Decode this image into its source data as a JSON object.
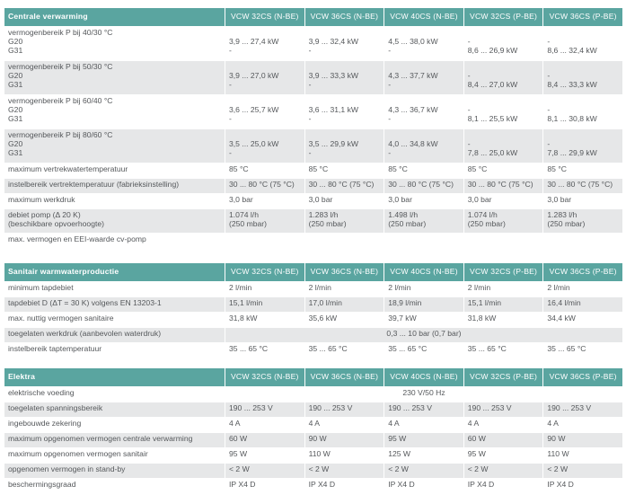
{
  "sections": [
    {
      "title": "Centrale verwarming",
      "columns": [
        "VCW 32CS (N-BE)",
        "VCW 36CS (N-BE)",
        "VCW 40CS (N-BE)",
        "VCW 32CS (P-BE)",
        "VCW 36CS (P-BE)"
      ],
      "rows": [
        {
          "label": [
            "vermogenbereik P bij 40/30 °C",
            "G20",
            "G31"
          ],
          "cells": [
            [
              "",
              "3,9 ... 27,4 kW",
              "-"
            ],
            [
              "",
              "3,9 ... 32,4 kW",
              "-"
            ],
            [
              "",
              "4,5 ... 38,0 kW",
              "-"
            ],
            [
              "",
              "-",
              "8,6 ... 26,9 kW"
            ],
            [
              "",
              "-",
              "8,6 ... 32,4 kW"
            ]
          ],
          "bg": "w",
          "h": 38
        },
        {
          "label": [
            "vermogenbereik P bij 50/30 °C",
            "G20",
            "G31"
          ],
          "cells": [
            [
              "",
              "3,9 ... 27,0 kW",
              "-"
            ],
            [
              "",
              "3,9 ... 33,3 kW",
              "-"
            ],
            [
              "",
              "4,3 ... 37,7 kW",
              "-"
            ],
            [
              "",
              "-",
              "8,4 ... 27,0 kW"
            ],
            [
              "",
              "-",
              "8,4 ... 33,3 kW"
            ]
          ],
          "bg": "g",
          "h": 38
        },
        {
          "label": [
            "vermogenbereik P bij 60/40 °C",
            "G20",
            "G31"
          ],
          "cells": [
            [
              "",
              "3,6 ... 25,7 kW",
              "-"
            ],
            [
              "",
              "3,6 ... 31,1 kW",
              "-"
            ],
            [
              "",
              "4,3 ... 36,7 kW",
              "-"
            ],
            [
              "",
              "-",
              "8,1 ... 25,5 kW"
            ],
            [
              "",
              "-",
              "8,1 ... 30,8 kW"
            ]
          ],
          "bg": "w",
          "h": 38
        },
        {
          "label": [
            "vermogenbereik P bij 80/60 °C",
            "G20",
            "G31"
          ],
          "cells": [
            [
              "",
              "3,5 ... 25,0 kW",
              "-"
            ],
            [
              "",
              "3,5 ... 29,9 kW",
              "-"
            ],
            [
              "",
              "4,0 ... 34,8 kW",
              "-"
            ],
            [
              "",
              "-",
              "7,8 ... 25,0 kW"
            ],
            [
              "",
              "-",
              "7,8 ... 29,9 kW"
            ]
          ],
          "bg": "g",
          "h": 38
        },
        {
          "label": [
            "maximum vertrekwatertemperatuur"
          ],
          "cells": [
            [
              "85 °C"
            ],
            [
              "85 °C"
            ],
            [
              "85 °C"
            ],
            [
              "85 °C"
            ],
            [
              "85 °C"
            ]
          ],
          "bg": "w",
          "h": 17
        },
        {
          "label": [
            "instelbereik vertrektemperatuur (fabrieksinstelling)"
          ],
          "cells": [
            [
              "30 ... 80 °C (75 °C)"
            ],
            [
              "30 ... 80 °C (75 °C)"
            ],
            [
              "30 ... 80 °C (75 °C)"
            ],
            [
              "30 ... 80 °C (75 °C)"
            ],
            [
              "30 ... 80 °C (75 °C)"
            ]
          ],
          "bg": "g",
          "h": 17
        },
        {
          "label": [
            "maximum werkdruk"
          ],
          "cells": [
            [
              "3,0 bar"
            ],
            [
              "3,0 bar"
            ],
            [
              "3,0 bar"
            ],
            [
              "3,0 bar"
            ],
            [
              "3,0 bar"
            ]
          ],
          "bg": "w",
          "h": 17
        },
        {
          "label": [
            "debiet pomp (Δ 20 K)",
            "(beschikbare opvoerhoogte)"
          ],
          "cells": [
            [
              "1.074 l/h",
              "(250 mbar)"
            ],
            [
              "1.283 l/h",
              "(250 mbar)"
            ],
            [
              "1.498 l/h",
              "(250 mbar)"
            ],
            [
              "1.074 l/h",
              "(250 mbar)"
            ],
            [
              "1.283 l/h",
              "(250 mbar)"
            ]
          ],
          "bg": "g",
          "h": 27
        },
        {
          "label": [
            "max. vermogen en EEI-waarde cv-pomp"
          ],
          "cells": [
            [
              ""
            ],
            [
              ""
            ],
            [
              ""
            ],
            [
              ""
            ],
            [
              ""
            ]
          ],
          "bg": "w",
          "h": 22
        }
      ]
    },
    {
      "title": "Sanitair warmwaterproductie",
      "columns": [
        "VCW 32CS (N-BE)",
        "VCW 36CS (N-BE)",
        "VCW 40CS (N-BE)",
        "VCW 32CS (P-BE)",
        "VCW 36CS (P-BE)"
      ],
      "rows": [
        {
          "label": [
            "minimum tapdebiet"
          ],
          "cells": [
            [
              "2 l/min"
            ],
            [
              "2 l/min"
            ],
            [
              "2 l/min"
            ],
            [
              "2 l/min"
            ],
            [
              "2 l/min"
            ]
          ],
          "bg": "w",
          "h": 17
        },
        {
          "label": [
            "tapdebiet D (ΔT = 30 K) volgens EN 13203-1"
          ],
          "cells": [
            [
              "15,1 l/min"
            ],
            [
              "17,0 l/min"
            ],
            [
              "18,9 l/min"
            ],
            [
              "15,1 l/min"
            ],
            [
              "16,4 l/min"
            ]
          ],
          "bg": "g",
          "h": 17
        },
        {
          "label": [
            "max. nuttig vermogen sanitaire"
          ],
          "cells": [
            [
              "31,8 kW"
            ],
            [
              "35,6 kW"
            ],
            [
              "39,7 kW"
            ],
            [
              "31,8 kW"
            ],
            [
              "34,4 kW"
            ]
          ],
          "bg": "w",
          "h": 17
        },
        {
          "label": [
            "toegelaten werkdruk (aanbevolen waterdruk)"
          ],
          "span": "0,3 ... 10 bar (0,7 bar)",
          "bg": "g",
          "h": 17
        },
        {
          "label": [
            "instelbereik taptemperatuur"
          ],
          "cells": [
            [
              "35 ... 65 °C"
            ],
            [
              "35 ... 65 °C"
            ],
            [
              "35 ... 65 °C"
            ],
            [
              "35 ... 65 °C"
            ],
            [
              "35 ... 65 °C"
            ]
          ],
          "bg": "w",
          "h": 17
        }
      ]
    },
    {
      "title": "Elektra",
      "columns": [
        "VCW 32CS (N-BE)",
        "VCW 36CS (N-BE)",
        "VCW 40CS (N-BE)",
        "VCW 32CS (P-BE)",
        "VCW 36CS (P-BE)"
      ],
      "rows": [
        {
          "label": [
            "elektrische voeding"
          ],
          "span": "230 V/50 Hz",
          "bg": "w",
          "h": 17
        },
        {
          "label": [
            "toegelaten spanningsbereik"
          ],
          "cells": [
            [
              "190 ... 253 V"
            ],
            [
              "190 ... 253 V"
            ],
            [
              "190 ... 253 V"
            ],
            [
              "190 ... 253 V"
            ],
            [
              "190 ... 253 V"
            ]
          ],
          "bg": "g",
          "h": 17
        },
        {
          "label": [
            "ingebouwde zekering"
          ],
          "cells": [
            [
              "4 A"
            ],
            [
              "4 A"
            ],
            [
              "4 A"
            ],
            [
              "4 A"
            ],
            [
              "4 A"
            ]
          ],
          "bg": "w",
          "h": 17
        },
        {
          "label": [
            "maximum opgenomen vermogen centrale verwarming"
          ],
          "cells": [
            [
              "60 W"
            ],
            [
              "90 W"
            ],
            [
              "95 W"
            ],
            [
              "60 W"
            ],
            [
              "90 W"
            ]
          ],
          "bg": "g",
          "h": 17
        },
        {
          "label": [
            "maximum opgenomen vermogen sanitair"
          ],
          "cells": [
            [
              "95 W"
            ],
            [
              "110 W"
            ],
            [
              "125 W"
            ],
            [
              "95 W"
            ],
            [
              "110 W"
            ]
          ],
          "bg": "w",
          "h": 17
        },
        {
          "label": [
            "opgenomen vermogen in stand-by"
          ],
          "cells": [
            [
              "< 2 W"
            ],
            [
              "< 2 W"
            ],
            [
              "< 2 W"
            ],
            [
              "< 2 W"
            ],
            [
              "< 2 W"
            ]
          ],
          "bg": "g",
          "h": 17
        },
        {
          "label": [
            "beschermingsgraad"
          ],
          "cells": [
            [
              "IP X4 D"
            ],
            [
              "IP X4 D"
            ],
            [
              "IP X4 D"
            ],
            [
              "IP X4 D"
            ],
            [
              "IP X4 D"
            ]
          ],
          "bg": "w",
          "h": 17
        }
      ]
    }
  ]
}
